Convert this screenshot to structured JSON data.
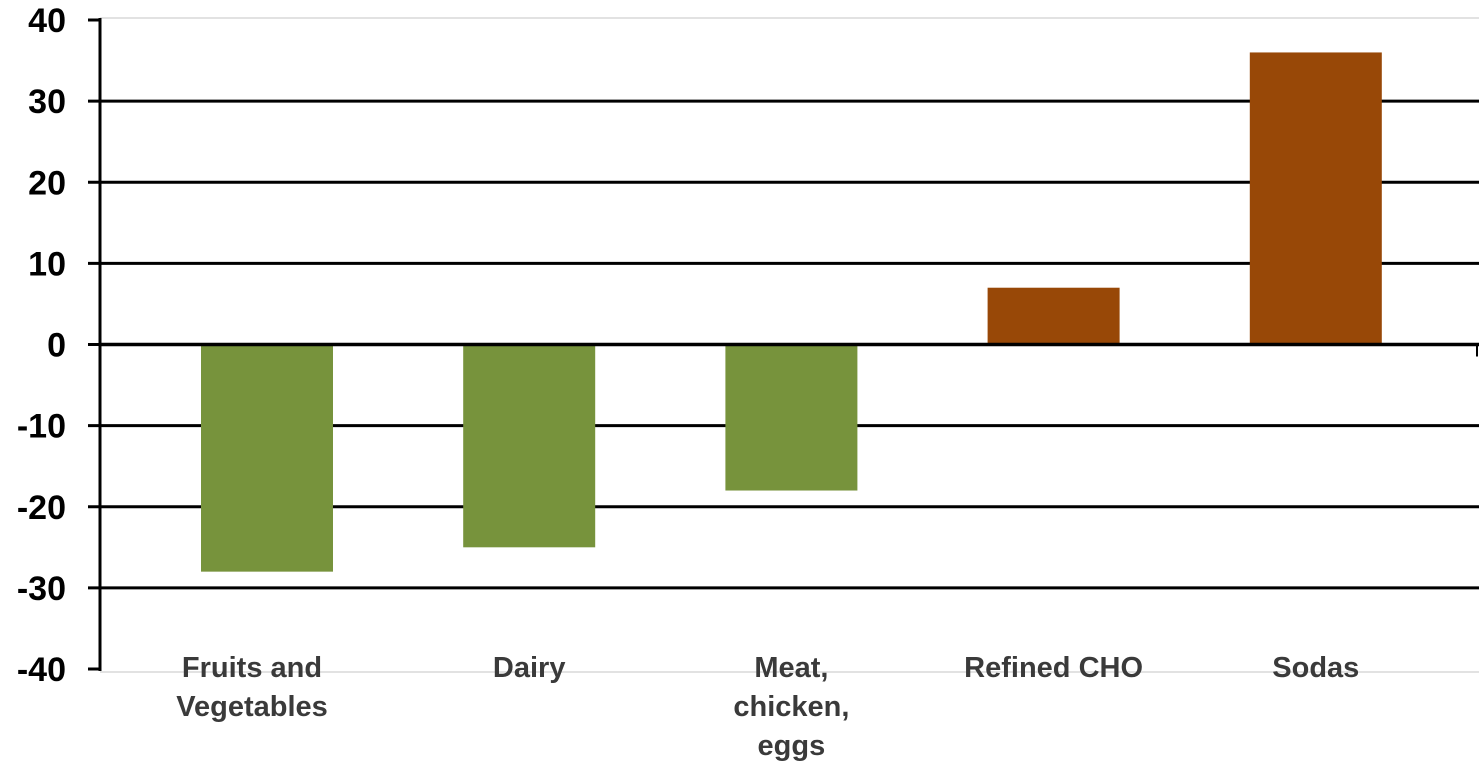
{
  "chart_data": {
    "type": "bar",
    "title": "",
    "xlabel": "",
    "ylabel": "",
    "ylim": [
      -40,
      40
    ],
    "yticks": [
      40,
      30,
      20,
      10,
      0,
      -10,
      -20,
      -30,
      -40
    ],
    "ytick_labels": [
      "40",
      "30",
      "20",
      "10",
      "0",
      "-10",
      "-20",
      "-30",
      "-40"
    ],
    "grid": true,
    "categories": [
      [
        "Fruits  and",
        "Vegetables"
      ],
      [
        "Dairy"
      ],
      [
        "Meat,",
        "chicken,",
        "eggs"
      ],
      [
        "Refined CHO"
      ],
      [
        "Sodas"
      ]
    ],
    "values": [
      -28,
      -25,
      -18,
      7,
      36
    ],
    "bar_colors": [
      "#77933c",
      "#77933c",
      "#77933c",
      "#984807",
      "#984807"
    ]
  }
}
